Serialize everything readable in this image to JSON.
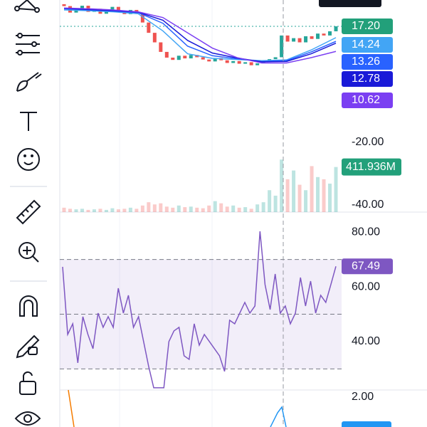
{
  "price_panel": {
    "ylim": [
      5.45,
      24.1
    ],
    "open": [
      23.0,
      22.5,
      20.8,
      21.7,
      22.6,
      21.0,
      21.8,
      20.5,
      21.6,
      22.3,
      21.2,
      20.4,
      21.5,
      20.6,
      18.2,
      15.5,
      13.0,
      10.5,
      9.0,
      8.4,
      9.5,
      8.8,
      9.7,
      9.1,
      8.5,
      8.0,
      8.9,
      8.3,
      7.6,
      8.1,
      7.4,
      7.8,
      7.0,
      7.5,
      8.0,
      8.6,
      9.1,
      14.8,
      13.2,
      14.1,
      13.0,
      14.6,
      13.9,
      15.3,
      14.8,
      15.9
    ],
    "close": [
      22.5,
      20.8,
      21.7,
      22.6,
      21.0,
      21.8,
      20.5,
      21.6,
      22.3,
      21.2,
      20.4,
      21.5,
      20.6,
      18.2,
      15.5,
      13.0,
      10.5,
      9.0,
      8.4,
      9.5,
      8.8,
      9.7,
      9.1,
      8.5,
      8.0,
      8.9,
      8.3,
      7.6,
      8.1,
      7.4,
      7.8,
      7.0,
      7.5,
      8.0,
      8.6,
      9.1,
      14.8,
      13.2,
      14.1,
      13.0,
      14.6,
      13.9,
      15.3,
      14.8,
      15.9,
      17.2
    ],
    "up_color": "#26a69a",
    "down_color": "#ef5350",
    "moving_averages": [
      {
        "color": "#42a5f5",
        "values": [
          21.5,
          21.3,
          21.0,
          20.5,
          16.0,
          10.0,
          8.8,
          8.5,
          8.2,
          8.4,
          11.0,
          14.24
        ]
      },
      {
        "color": "#2962ff",
        "values": [
          21.8,
          21.5,
          21.2,
          20.8,
          18.0,
          12.0,
          9.5,
          8.7,
          8.0,
          8.2,
          10.5,
          13.26
        ]
      },
      {
        "color": "#1a1ad8",
        "values": [
          21.9,
          21.6,
          21.3,
          20.9,
          18.8,
          13.5,
          10.2,
          8.9,
          7.9,
          8.0,
          10.0,
          12.78
        ]
      },
      {
        "color": "#7b3ff2",
        "values": [
          22.0,
          21.8,
          21.5,
          21.0,
          19.5,
          15.5,
          11.5,
          9.0,
          7.6,
          7.6,
          9.0,
          10.62
        ]
      }
    ],
    "last_price": 17.2,
    "price_labels": [
      {
        "text": "17.20",
        "color": "#22a07a"
      },
      {
        "text": "14.24",
        "color": "#42a5f5"
      },
      {
        "text": "13.26",
        "color": "#2962ff"
      },
      {
        "text": "12.78",
        "color": "#1a1ad8"
      },
      {
        "text": "10.62",
        "color": "#7b3ff2"
      }
    ]
  },
  "volume_panel": {
    "ylim": [
      0,
      800
    ],
    "axis_labels": [
      "-20.00",
      "-40.00"
    ],
    "last_label": "411.936M",
    "last_value": 411.936,
    "values": [
      40,
      30,
      25,
      30,
      20,
      25,
      30,
      20,
      35,
      25,
      30,
      40,
      30,
      60,
      90,
      70,
      80,
      50,
      40,
      60,
      45,
      50,
      40,
      35,
      60,
      100,
      80,
      50,
      60,
      40,
      45,
      30,
      70,
      90,
      200,
      150,
      480,
      300,
      380,
      250,
      200,
      420,
      320,
      300,
      260,
      411.936
    ]
  },
  "rsi_panel": {
    "ylim": [
      22.3,
      86.8
    ],
    "yticks": [
      {
        "value": 80,
        "label": "80.00"
      },
      {
        "value": 60,
        "label": "60.00"
      },
      {
        "value": 40,
        "label": "40.00"
      }
    ],
    "levels": [
      70,
      50,
      30
    ],
    "last_label": "67.49",
    "color": "#7e57c2",
    "values": [
      67.3,
      42.6,
      46.5,
      32.2,
      49.1,
      42.6,
      37.4,
      50.4,
      45.2,
      49.1,
      45.2,
      59.5,
      50.4,
      56.9,
      45.2,
      49.1,
      40.0,
      30.9,
      23.1,
      23.1,
      23.1,
      40.0,
      43.9,
      45.2,
      34.8,
      33.5,
      46.5,
      38.7,
      42.6,
      40.0,
      37.4,
      34.8,
      29.1,
      47.8,
      46.5,
      50.4,
      54.3,
      50.4,
      53.0,
      80.3,
      60.8,
      51.7,
      64.7,
      50.4,
      53.0,
      46.5,
      50.4,
      63.4,
      53.0,
      62.1,
      50.4,
      56.9,
      54.3,
      60.8,
      67.49
    ]
  },
  "bottom_panel": {
    "axis_label": "2.00"
  }
}
